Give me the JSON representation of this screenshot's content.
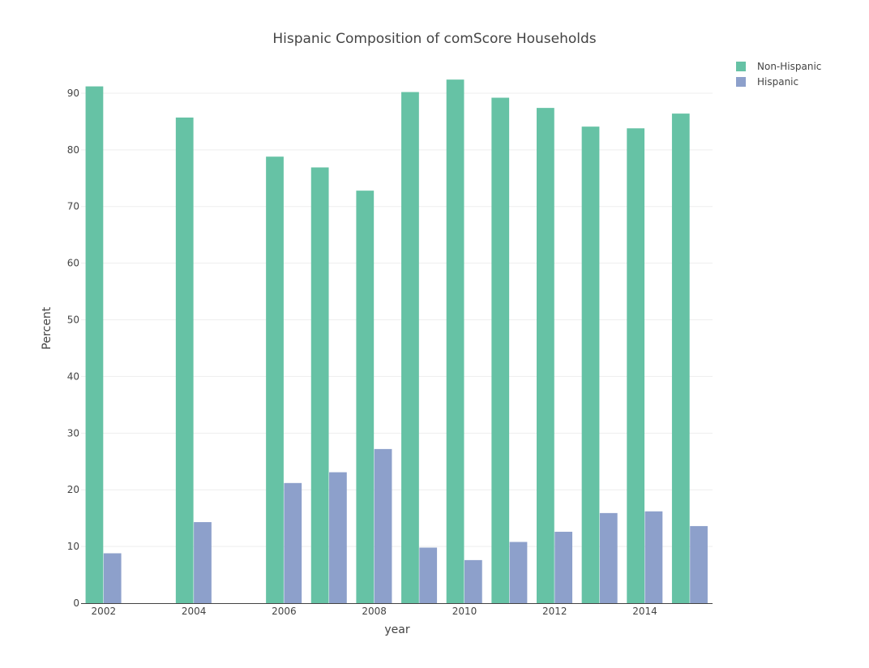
{
  "chart_data": {
    "type": "bar",
    "title": "Hispanic Composition of comScore Households",
    "xlabel": "year",
    "ylabel": "Percent",
    "x": [
      2002,
      2004,
      2006,
      2007,
      2008,
      2009,
      2010,
      2011,
      2012,
      2013,
      2014,
      2015
    ],
    "series": [
      {
        "name": "Non-Hispanic",
        "color": "#66c2a5",
        "values": [
          91.2,
          85.7,
          78.8,
          76.9,
          72.8,
          90.2,
          92.4,
          89.2,
          87.4,
          84.1,
          83.8,
          86.4
        ]
      },
      {
        "name": "Hispanic",
        "color": "#8da0cb",
        "values": [
          8.8,
          14.3,
          21.2,
          23.1,
          27.2,
          9.8,
          7.6,
          10.8,
          12.6,
          15.9,
          16.2,
          13.6
        ]
      }
    ],
    "xlim": [
      2001.5,
      2015.5
    ],
    "ylim": [
      0,
      95
    ],
    "xticks": [
      2002,
      2004,
      2006,
      2008,
      2010,
      2012,
      2014
    ],
    "yticks": [
      0,
      10,
      20,
      30,
      40,
      50,
      60,
      70,
      80,
      90
    ],
    "grid": true,
    "legend_position": "top-right"
  }
}
